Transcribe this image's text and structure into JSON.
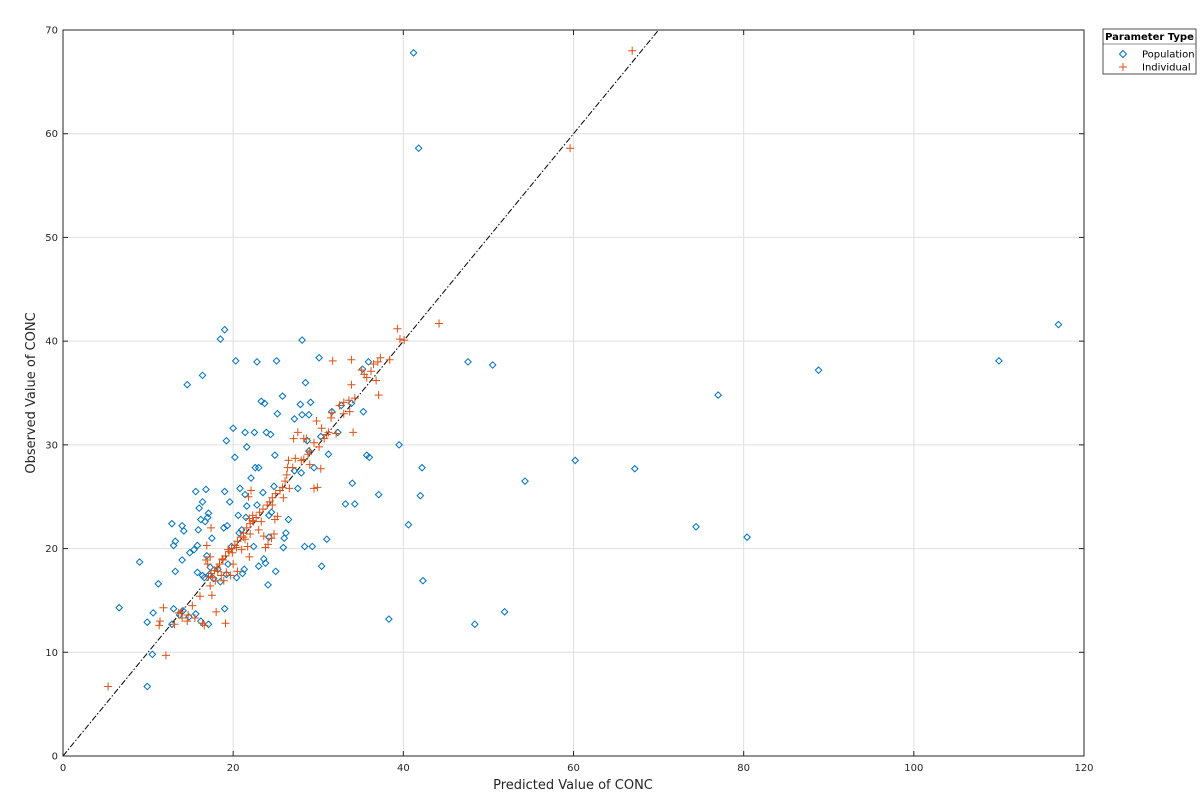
{
  "chart_data": {
    "type": "scatter",
    "xlabel": "Predicted Value of CONC",
    "ylabel": "Observed Value of CONC",
    "xlim": [
      0,
      120
    ],
    "ylim": [
      0,
      70
    ],
    "xticks": [
      0,
      20,
      40,
      60,
      80,
      100,
      120
    ],
    "yticks": [
      0,
      10,
      20,
      30,
      40,
      50,
      60,
      70
    ],
    "grid": true,
    "legend": {
      "title": "Parameter Type",
      "placement": "outside-top-right"
    },
    "reference_line": {
      "style": "dash-dot",
      "color": "#000000",
      "slope": 1,
      "intercept": 0
    },
    "series": [
      {
        "name": "Population",
        "marker": "diamond",
        "color": "#0072BD",
        "points": [
          [
            41.2,
            67.8
          ],
          [
            41.8,
            58.6
          ],
          [
            117.0,
            41.6
          ],
          [
            110.0,
            38.1
          ],
          [
            88.8,
            37.2
          ],
          [
            77.0,
            34.8
          ],
          [
            80.4,
            21.1
          ],
          [
            74.4,
            22.1
          ],
          [
            67.2,
            27.7
          ],
          [
            60.2,
            28.5
          ],
          [
            54.3,
            26.5
          ],
          [
            51.9,
            13.9
          ],
          [
            48.4,
            12.7
          ],
          [
            47.6,
            38.0
          ],
          [
            50.5,
            37.7
          ],
          [
            42.2,
            27.8
          ],
          [
            42.0,
            25.1
          ],
          [
            42.3,
            16.9
          ],
          [
            40.6,
            22.3
          ],
          [
            39.5,
            30.0
          ],
          [
            38.3,
            13.2
          ],
          [
            37.1,
            25.2
          ],
          [
            36.0,
            28.8
          ],
          [
            35.7,
            29.0
          ],
          [
            35.3,
            33.2
          ],
          [
            34.0,
            26.3
          ],
          [
            34.3,
            24.3
          ],
          [
            33.2,
            24.3
          ],
          [
            35.2,
            37.3
          ],
          [
            35.9,
            38.0
          ],
          [
            30.1,
            38.4
          ],
          [
            28.1,
            40.1
          ],
          [
            25.1,
            38.1
          ],
          [
            22.8,
            38.0
          ],
          [
            20.3,
            38.1
          ],
          [
            19.0,
            41.1
          ],
          [
            18.5,
            40.2
          ],
          [
            16.4,
            36.7
          ],
          [
            14.6,
            35.8
          ],
          [
            31.0,
            20.9
          ],
          [
            30.4,
            18.3
          ],
          [
            29.3,
            20.2
          ],
          [
            28.4,
            20.2
          ],
          [
            27.6,
            25.8
          ],
          [
            27.2,
            27.5
          ],
          [
            28.0,
            27.3
          ],
          [
            28.5,
            36.0
          ],
          [
            27.9,
            33.9
          ],
          [
            29.1,
            34.1
          ],
          [
            28.9,
            32.9
          ],
          [
            28.1,
            32.9
          ],
          [
            27.2,
            32.5
          ],
          [
            28.7,
            30.4
          ],
          [
            29.5,
            27.8
          ],
          [
            26.2,
            21.5
          ],
          [
            26.0,
            21.0
          ],
          [
            25.0,
            17.8
          ],
          [
            24.1,
            16.5
          ],
          [
            23.6,
            19.0
          ],
          [
            23.0,
            18.3
          ],
          [
            23.8,
            18.6
          ],
          [
            24.2,
            21.1
          ],
          [
            24.5,
            23.5
          ],
          [
            24.8,
            26.0
          ],
          [
            24.9,
            29.0
          ],
          [
            25.2,
            33.0
          ],
          [
            25.8,
            34.7
          ],
          [
            23.3,
            34.2
          ],
          [
            23.7,
            34.0
          ],
          [
            22.5,
            31.2
          ],
          [
            23.9,
            31.2
          ],
          [
            24.4,
            31.0
          ],
          [
            21.4,
            31.2
          ],
          [
            20.0,
            31.6
          ],
          [
            19.2,
            30.4
          ],
          [
            22.6,
            27.8
          ],
          [
            23.0,
            27.8
          ],
          [
            21.6,
            29.8
          ],
          [
            20.2,
            28.8
          ],
          [
            22.1,
            26.8
          ],
          [
            20.8,
            25.8
          ],
          [
            21.4,
            25.2
          ],
          [
            19.0,
            25.5
          ],
          [
            19.6,
            24.5
          ],
          [
            20.6,
            23.2
          ],
          [
            21.5,
            23.0
          ],
          [
            21.0,
            21.8
          ],
          [
            20.7,
            21.5
          ],
          [
            19.3,
            22.2
          ],
          [
            18.9,
            22.0
          ],
          [
            20.4,
            17.2
          ],
          [
            21.3,
            18.0
          ],
          [
            21.1,
            17.6
          ],
          [
            19.2,
            17.5
          ],
          [
            19.0,
            14.2
          ],
          [
            17.7,
            17.1
          ],
          [
            17.2,
            17.5
          ],
          [
            16.6,
            17.2
          ],
          [
            16.9,
            19.3
          ],
          [
            17.3,
            18.2
          ],
          [
            17.0,
            23.0
          ],
          [
            17.1,
            23.4
          ],
          [
            16.8,
            25.7
          ],
          [
            16.4,
            24.5
          ],
          [
            16.0,
            23.9
          ],
          [
            15.6,
            25.5
          ],
          [
            16.2,
            22.8
          ],
          [
            16.7,
            22.6
          ],
          [
            15.9,
            21.8
          ],
          [
            17.5,
            21.0
          ],
          [
            16.4,
            17.4
          ],
          [
            15.8,
            17.7
          ],
          [
            15.4,
            19.9
          ],
          [
            15.8,
            20.3
          ],
          [
            14.9,
            19.6
          ],
          [
            16.2,
            13.0
          ],
          [
            17.1,
            12.7
          ],
          [
            15.6,
            13.7
          ],
          [
            14.8,
            13.4
          ],
          [
            14.1,
            14.0
          ],
          [
            13.7,
            13.6
          ],
          [
            13.0,
            14.2
          ],
          [
            12.8,
            12.7
          ],
          [
            14.0,
            18.9
          ],
          [
            13.2,
            17.8
          ],
          [
            14.2,
            21.7
          ],
          [
            14.0,
            22.2
          ],
          [
            12.8,
            22.4
          ],
          [
            13.2,
            20.7
          ],
          [
            13.0,
            20.3
          ],
          [
            11.2,
            16.6
          ],
          [
            10.6,
            13.8
          ],
          [
            9.9,
            12.9
          ],
          [
            10.5,
            9.8
          ],
          [
            9.9,
            6.7
          ],
          [
            9.0,
            18.7
          ],
          [
            6.6,
            14.3
          ],
          [
            28.9,
            29.4
          ],
          [
            30.3,
            30.8
          ],
          [
            31.2,
            29.1
          ],
          [
            32.7,
            33.8
          ],
          [
            33.9,
            34.0
          ],
          [
            31.6,
            33.2
          ],
          [
            32.3,
            31.2
          ],
          [
            26.5,
            22.8
          ],
          [
            25.9,
            20.1
          ],
          [
            24.2,
            23.2
          ],
          [
            23.5,
            25.4
          ],
          [
            22.8,
            24.2
          ],
          [
            21.6,
            24.1
          ],
          [
            18.5,
            16.8
          ],
          [
            18.2,
            18.0
          ],
          [
            19.4,
            18.5
          ],
          [
            19.8,
            20.2
          ],
          [
            22.4,
            20.2
          ]
        ]
      },
      {
        "name": "Individual",
        "marker": "plus",
        "color": "#D95319",
        "points": [
          [
            66.9,
            68.0
          ],
          [
            59.6,
            58.6
          ],
          [
            44.2,
            41.7
          ],
          [
            39.3,
            41.2
          ],
          [
            39.6,
            40.2
          ],
          [
            40.1,
            40.1
          ],
          [
            38.4,
            38.2
          ],
          [
            37.3,
            38.4
          ],
          [
            37.0,
            38.0
          ],
          [
            36.5,
            37.8
          ],
          [
            37.1,
            34.8
          ],
          [
            36.2,
            37.1
          ],
          [
            35.7,
            36.5
          ],
          [
            35.1,
            37.2
          ],
          [
            34.3,
            34.5
          ],
          [
            33.9,
            35.8
          ],
          [
            33.9,
            38.2
          ],
          [
            31.7,
            38.1
          ],
          [
            33.6,
            34.3
          ],
          [
            33.0,
            34.1
          ],
          [
            32.5,
            33.8
          ],
          [
            31.6,
            33.1
          ],
          [
            31.5,
            32.6
          ],
          [
            31.2,
            31.2
          ],
          [
            32.1,
            31.1
          ],
          [
            34.1,
            31.2
          ],
          [
            33.7,
            33.2
          ],
          [
            30.4,
            31.6
          ],
          [
            30.7,
            30.6
          ],
          [
            30.1,
            29.8
          ],
          [
            29.5,
            30.2
          ],
          [
            29.0,
            29.4
          ],
          [
            28.8,
            29.1
          ],
          [
            28.3,
            28.6
          ],
          [
            28.0,
            28.5
          ],
          [
            27.3,
            28.7
          ],
          [
            27.0,
            27.8
          ],
          [
            26.5,
            28.5
          ],
          [
            26.3,
            27.1
          ],
          [
            26.1,
            26.5
          ],
          [
            25.8,
            25.9
          ],
          [
            25.5,
            25.6
          ],
          [
            25.0,
            25.3
          ],
          [
            24.6,
            24.9
          ],
          [
            24.3,
            24.5
          ],
          [
            24.0,
            24.2
          ],
          [
            23.5,
            23.8
          ],
          [
            23.1,
            23.5
          ],
          [
            22.7,
            23.0
          ],
          [
            22.3,
            22.7
          ],
          [
            22.0,
            22.4
          ],
          [
            21.6,
            22.0
          ],
          [
            21.2,
            21.5
          ],
          [
            20.9,
            21.1
          ],
          [
            20.5,
            20.7
          ],
          [
            20.2,
            20.3
          ],
          [
            19.8,
            20.0
          ],
          [
            19.5,
            19.7
          ],
          [
            19.1,
            19.3
          ],
          [
            18.8,
            18.9
          ],
          [
            18.4,
            18.5
          ],
          [
            18.1,
            18.2
          ],
          [
            17.8,
            17.9
          ],
          [
            17.4,
            17.6
          ],
          [
            17.1,
            17.3
          ],
          [
            29.8,
            32.3
          ],
          [
            29.5,
            25.8
          ],
          [
            29.9,
            25.9
          ],
          [
            30.3,
            27.7
          ],
          [
            27.1,
            30.6
          ],
          [
            28.6,
            30.6
          ],
          [
            29.0,
            28.1
          ],
          [
            26.6,
            25.8
          ],
          [
            26.4,
            27.8
          ],
          [
            25.9,
            24.9
          ],
          [
            25.2,
            23.1
          ],
          [
            24.6,
            24.2
          ],
          [
            24.9,
            22.8
          ],
          [
            24.8,
            21.4
          ],
          [
            24.5,
            21.0
          ],
          [
            23.6,
            21.2
          ],
          [
            23.8,
            20.1
          ],
          [
            23.3,
            22.6
          ],
          [
            22.4,
            22.6
          ],
          [
            22.1,
            25.6
          ],
          [
            21.8,
            25.0
          ],
          [
            22.3,
            23.2
          ],
          [
            21.9,
            22.9
          ],
          [
            21.2,
            21.1
          ],
          [
            21.4,
            20.9
          ],
          [
            21.7,
            20.2
          ],
          [
            21.9,
            19.2
          ],
          [
            21.0,
            19.9
          ],
          [
            20.4,
            20.1
          ],
          [
            19.9,
            19.6
          ],
          [
            20.0,
            18.5
          ],
          [
            20.5,
            17.8
          ],
          [
            19.7,
            17.4
          ],
          [
            19.2,
            17.7
          ],
          [
            18.9,
            16.9
          ],
          [
            19.1,
            12.8
          ],
          [
            18.6,
            17.4
          ],
          [
            18.2,
            17.8
          ],
          [
            17.9,
            16.9
          ],
          [
            17.5,
            15.5
          ],
          [
            17.3,
            16.4
          ],
          [
            17.0,
            18.5
          ],
          [
            16.8,
            18.9
          ],
          [
            17.3,
            19.2
          ],
          [
            17.4,
            22.0
          ],
          [
            16.9,
            20.3
          ],
          [
            18.0,
            13.9
          ],
          [
            16.4,
            12.8
          ],
          [
            15.2,
            14.5
          ],
          [
            14.7,
            13.6
          ],
          [
            14.6,
            13.0
          ],
          [
            14.0,
            13.3
          ],
          [
            13.6,
            13.8
          ],
          [
            13.1,
            12.7
          ],
          [
            11.4,
            13.0
          ],
          [
            11.3,
            12.6
          ],
          [
            11.8,
            14.3
          ],
          [
            12.1,
            9.7
          ],
          [
            5.3,
            6.7
          ],
          [
            16.6,
            12.6
          ],
          [
            35.4,
            36.8
          ],
          [
            36.8,
            36.2
          ],
          [
            33.0,
            33.0
          ],
          [
            28.3,
            30.6
          ],
          [
            27.6,
            31.2
          ],
          [
            31.0,
            31.0
          ],
          [
            22.0,
            21.4
          ],
          [
            23.0,
            21.8
          ],
          [
            24.1,
            20.4
          ],
          [
            19.4,
            19.9
          ],
          [
            18.7,
            19.0
          ],
          [
            17.6,
            17.2
          ],
          [
            16.1,
            15.4
          ],
          [
            15.5,
            13.3
          ],
          [
            13.9,
            13.9
          ]
        ]
      }
    ]
  }
}
